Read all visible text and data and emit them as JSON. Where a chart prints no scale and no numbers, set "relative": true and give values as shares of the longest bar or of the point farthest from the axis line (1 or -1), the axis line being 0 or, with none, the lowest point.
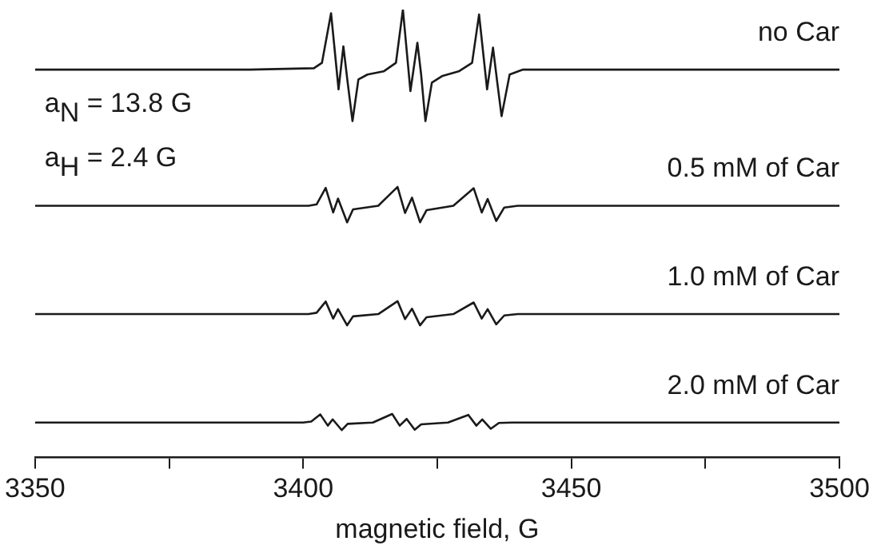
{
  "chart_data": {
    "type": "line",
    "relative": true,
    "xlabel": "magnetic field, G",
    "xlim": [
      3350,
      3500
    ],
    "xticks": [
      3350,
      {
        "value": 3375,
        "label": null
      },
      3400,
      {
        "value": 3425,
        "label": null
      },
      3450,
      {
        "value": 3475,
        "label": null
      },
      3500
    ],
    "legend": false,
    "grid": false,
    "marker": "none",
    "line_style": "solid",
    "annotations": [
      "a$_{N}$ = 13.8 G",
      "a$_{H}$ = 2.4 G"
    ],
    "series": [
      {
        "name": "no Car",
        "color": "#1a1a1a",
        "x": [
          3350,
          3370,
          3390,
          3402,
          3403.5,
          3405.2,
          3406.6,
          3407.5,
          3408.3,
          3409.2,
          3410.3,
          3412,
          3415,
          3417.3,
          3418.6,
          3420,
          3421.3,
          3422,
          3422.8,
          3424,
          3426,
          3429,
          3431.5,
          3432.8,
          3434.3,
          3435.4,
          3436.2,
          3437,
          3438.5,
          3441,
          3460,
          3480,
          3500
        ],
        "values": [
          0.866,
          0.866,
          0.866,
          0.869,
          0.881,
          0.992,
          0.822,
          0.918,
          0.837,
          0.751,
          0.844,
          0.855,
          0.862,
          0.881,
          1.0,
          0.818,
          0.926,
          0.855,
          0.751,
          0.837,
          0.852,
          0.862,
          0.881,
          0.989,
          0.822,
          0.915,
          0.837,
          0.762,
          0.855,
          0.866,
          0.866,
          0.866,
          0.866
        ]
      },
      {
        "name": "0.5 mM of Car",
        "color": "#1a1a1a",
        "x": [
          3350,
          3401,
          3402.5,
          3404.2,
          3405.6,
          3406.5,
          3408.2,
          3409.3,
          3414,
          3417.6,
          3419,
          3420.3,
          3421.8,
          3423,
          3428,
          3431.8,
          3433.3,
          3434.4,
          3436,
          3437.5,
          3440,
          3500
        ],
        "values": [
          0.562,
          0.562,
          0.565,
          0.602,
          0.547,
          0.578,
          0.525,
          0.554,
          0.562,
          0.604,
          0.546,
          0.58,
          0.525,
          0.552,
          0.562,
          0.601,
          0.547,
          0.577,
          0.528,
          0.558,
          0.562,
          0.562
        ]
      },
      {
        "name": "1.0 mM of Car",
        "color": "#1a1a1a",
        "x": [
          3350,
          3401,
          3402.5,
          3404.2,
          3405.6,
          3406.5,
          3408.2,
          3409.3,
          3414,
          3417.6,
          3419,
          3420.3,
          3421.8,
          3423,
          3428,
          3431.8,
          3433.3,
          3434.4,
          3436,
          3437.5,
          3440,
          3500
        ],
        "values": [
          0.32,
          0.32,
          0.323,
          0.348,
          0.31,
          0.331,
          0.295,
          0.315,
          0.32,
          0.349,
          0.309,
          0.332,
          0.295,
          0.313,
          0.32,
          0.346,
          0.31,
          0.331,
          0.297,
          0.317,
          0.32,
          0.32
        ]
      },
      {
        "name": "2.0 mM of Car",
        "color": "#1a1a1a",
        "x": [
          3350,
          3400,
          3401.5,
          3403.2,
          3404.6,
          3405.5,
          3407.2,
          3408.3,
          3413,
          3416.6,
          3418,
          3419.3,
          3420.8,
          3422,
          3427,
          3430.8,
          3432.3,
          3433.4,
          3435,
          3436.5,
          3439,
          3500
        ],
        "values": [
          0.078,
          0.078,
          0.08,
          0.096,
          0.071,
          0.085,
          0.061,
          0.075,
          0.078,
          0.097,
          0.071,
          0.086,
          0.062,
          0.074,
          0.078,
          0.095,
          0.071,
          0.085,
          0.064,
          0.077,
          0.078,
          0.078
        ]
      }
    ]
  }
}
